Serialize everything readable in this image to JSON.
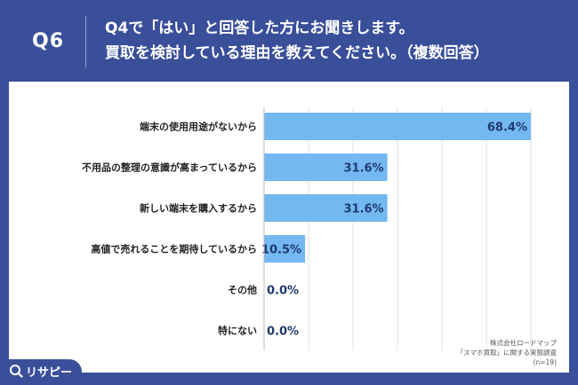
{
  "question": {
    "number": "Q6",
    "line1": "Q4で「はい」と回答した方にお聞きします。",
    "line2": "買取を検討している理由を教えてください。（複数回答）"
  },
  "chart_data": {
    "type": "bar",
    "orientation": "horizontal",
    "categories": [
      "端末の使用用途がないから",
      "不用品の整理の意識が高まっているから",
      "新しい端末を購入するから",
      "高値で売れることを期待しているから",
      "その他",
      "特にない"
    ],
    "values": [
      68.4,
      31.6,
      31.6,
      10.5,
      0.0,
      0.0
    ],
    "value_labels": [
      "68.4%",
      "31.6%",
      "31.6%",
      "10.5%",
      "0.0%",
      "0.0%"
    ],
    "unit": "%",
    "xlim": [
      0,
      68.4
    ],
    "grid": true,
    "bar_color": "#74b8f2"
  },
  "footnote": {
    "line1": "株式会社ロードマップ",
    "line2": "「スマホ買取」に関する実態調査",
    "line3": "(n=19)"
  },
  "brand": {
    "name": "リサピー",
    "icon": "magnifier-icon"
  },
  "colors": {
    "background": "#3a4f9a",
    "bar": "#74b8f2",
    "value_text": "#1f3a6e",
    "label_text": "#222222"
  }
}
